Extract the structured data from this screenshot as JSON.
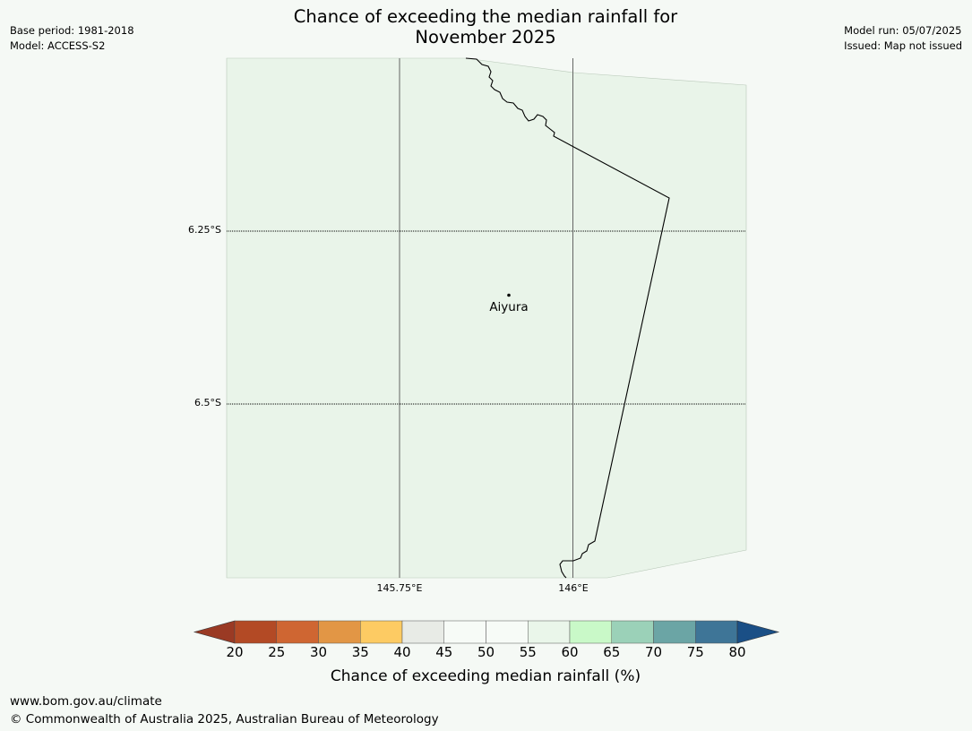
{
  "title_line1": "Chance of exceeding the median rainfall for",
  "title_line2": "November 2025",
  "meta_left": {
    "base_period": "Base period: 1981-2018",
    "model": "Model: ACCESS-S2"
  },
  "meta_right": {
    "model_run": "Model run: 05/07/2025",
    "issued": "Issued: Map not issued"
  },
  "map": {
    "land_color": "#e9f4e9",
    "border_color": "#000000",
    "gridline_color": "#555555",
    "lat_labels": [
      "6.25°S",
      "6.5°S"
    ],
    "lon_labels": [
      "145.75°E",
      "146°E"
    ],
    "places": [
      {
        "name": "Aiyura",
        "lat": -6.34,
        "lon": 145.9
      }
    ]
  },
  "colorbar": {
    "label": "Chance of exceeding median rainfall (%)",
    "ticks": [
      "20",
      "25",
      "30",
      "35",
      "40",
      "45",
      "50",
      "55",
      "60",
      "65",
      "70",
      "75",
      "80"
    ],
    "under_color": "#9a3a24",
    "over_color": "#1a4f86",
    "colors": [
      "#b34a25",
      "#cf6632",
      "#e29645",
      "#fdcb63",
      "#e8ebe6",
      "#f7fbf7",
      "#f7fbf7",
      "#eaf6ea",
      "#c9f9c8",
      "#9bd1b8",
      "#6ba5a5",
      "#3e7597"
    ]
  },
  "footer": {
    "url": "www.bom.gov.au/climate",
    "copyright": "© Commonwealth of Australia 2025, Australian Bureau of Meteorology"
  }
}
